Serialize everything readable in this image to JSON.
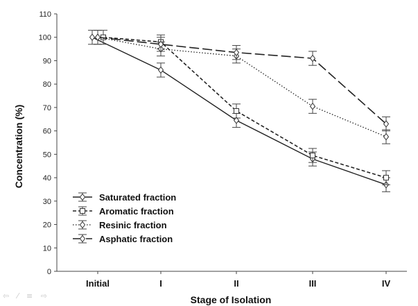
{
  "chart_data": {
    "type": "line",
    "categories": [
      "Initial",
      "I",
      "II",
      "III",
      "IV"
    ],
    "xlabel": "Stage of Isolation",
    "ylabel": "Concentration (%)",
    "ylim": [
      0,
      110
    ],
    "yticks": [
      0,
      10,
      20,
      30,
      40,
      50,
      60,
      70,
      80,
      90,
      100,
      110
    ],
    "error_bar": 3,
    "legend_position": "bottom-left",
    "series": [
      {
        "name": "Saturated fraction",
        "values": [
          100,
          86,
          64.5,
          48,
          37
        ],
        "line_style": "solid",
        "marker": "diamond"
      },
      {
        "name": "Aromatic fraction",
        "values": [
          100,
          98,
          68.5,
          49.5,
          40
        ],
        "line_style": "short-dash",
        "marker": "square"
      },
      {
        "name": "Resinic fraction",
        "values": [
          100,
          95,
          92,
          70.5,
          57.5
        ],
        "line_style": "dotted",
        "marker": "diamond"
      },
      {
        "name": "Asphatic fraction",
        "values": [
          100,
          97,
          93.5,
          91,
          63
        ],
        "line_style": "long-dash",
        "marker": "diamond"
      }
    ]
  },
  "controls": {
    "icons": [
      "back-arrow-icon",
      "pen-icon",
      "menu-icon",
      "forward-arrow-icon"
    ],
    "glyphs": "⇦ ⁄ ≡ ⇨"
  }
}
